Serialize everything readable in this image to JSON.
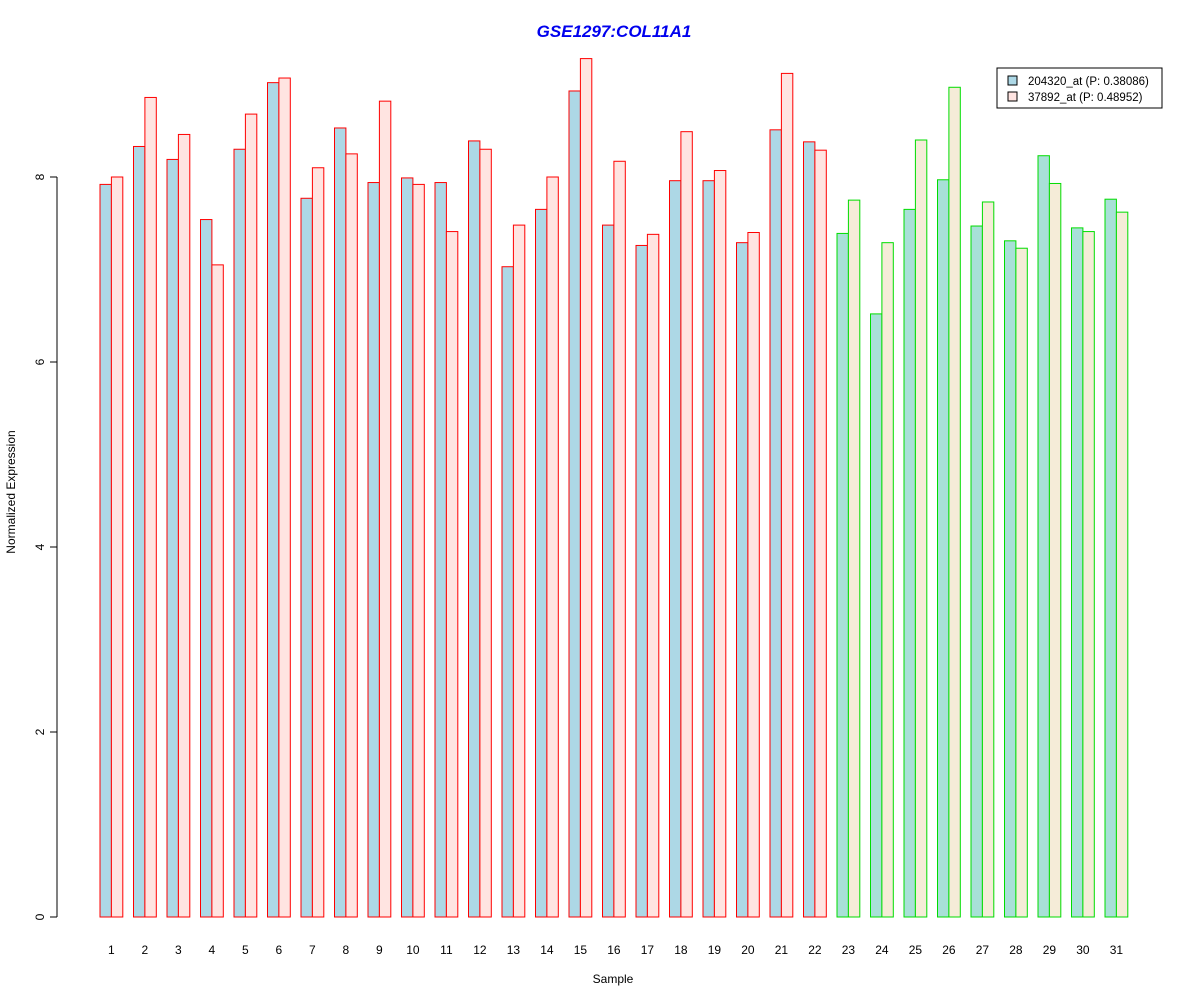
{
  "chart_data": {
    "type": "bar",
    "title": "GSE1297:COL11A1",
    "xlabel": "Sample",
    "ylabel": "Normalized Expression",
    "ylim": [
      0,
      9.4
    ],
    "yticks": [
      0,
      2,
      4,
      6,
      8
    ],
    "categories": [
      "1",
      "2",
      "3",
      "4",
      "5",
      "6",
      "7",
      "8",
      "9",
      "10",
      "11",
      "12",
      "13",
      "14",
      "15",
      "16",
      "17",
      "18",
      "19",
      "20",
      "21",
      "22",
      "23",
      "24",
      "25",
      "26",
      "27",
      "28",
      "29",
      "30",
      "31"
    ],
    "groups": [
      "A",
      "A",
      "A",
      "A",
      "A",
      "A",
      "A",
      "A",
      "A",
      "A",
      "A",
      "A",
      "A",
      "A",
      "A",
      "A",
      "A",
      "A",
      "A",
      "A",
      "A",
      "A",
      "B",
      "B",
      "B",
      "B",
      "B",
      "B",
      "B",
      "B",
      "B"
    ],
    "series": [
      {
        "name": "204320_at (P: 0.38086)",
        "values": [
          7.92,
          8.33,
          8.19,
          7.54,
          8.3,
          9.02,
          7.77,
          8.53,
          7.94,
          7.99,
          7.94,
          8.39,
          7.03,
          7.65,
          8.93,
          7.48,
          7.26,
          7.96,
          7.96,
          7.29,
          8.51,
          8.38,
          7.39,
          6.52,
          7.65,
          7.97,
          7.47,
          7.31,
          8.23,
          7.45,
          7.76
        ]
      },
      {
        "name": "37892_at (P: 0.48952)",
        "values": [
          8.0,
          8.86,
          8.46,
          7.05,
          8.68,
          9.07,
          8.1,
          8.25,
          8.82,
          7.92,
          7.41,
          8.3,
          7.48,
          8.0,
          9.28,
          8.17,
          7.38,
          8.49,
          8.07,
          7.4,
          9.12,
          8.29,
          7.75,
          7.29,
          8.4,
          8.97,
          7.73,
          7.23,
          7.93,
          7.41,
          7.62
        ]
      }
    ],
    "colors": {
      "series1_fill": "#add8e6",
      "series1_fill_groupB": "#a8e0d8",
      "series2_fill_groupA": "#ffe4e1",
      "series2_fill_groupB": "#f5ecd8",
      "border_groupA": "#ff0000",
      "border_groupB": "#00dd00",
      "title": "#0000ee"
    },
    "grid": false,
    "legend_position": "top-right"
  }
}
